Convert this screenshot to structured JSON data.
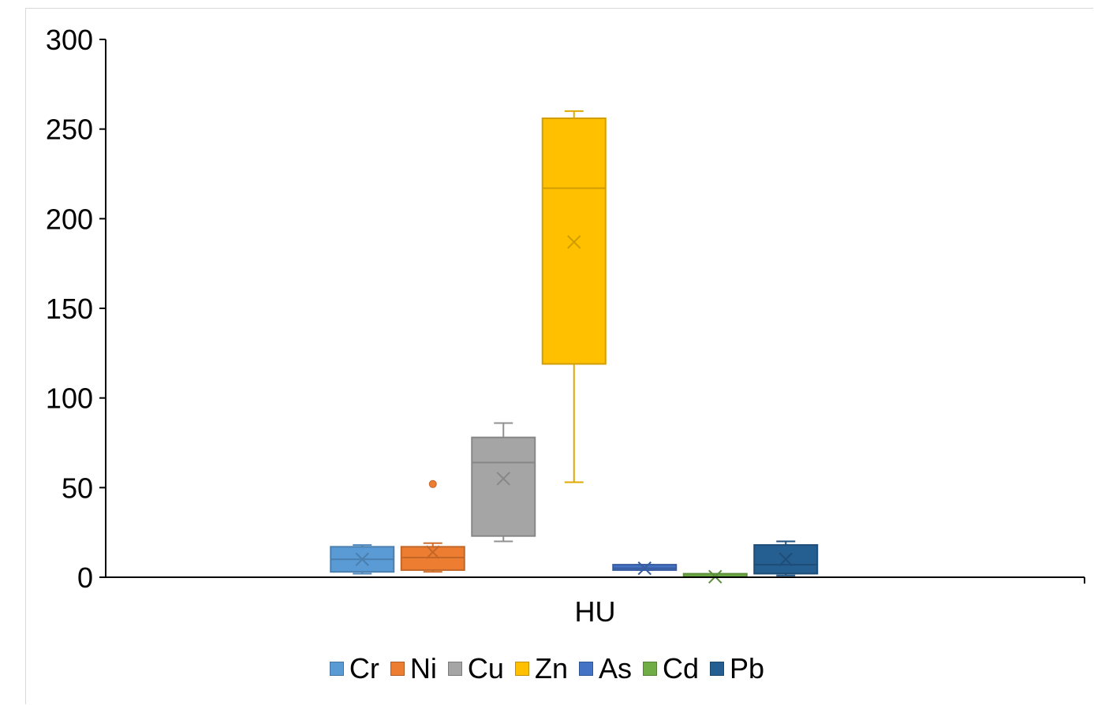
{
  "chart_data": {
    "type": "box",
    "title": "",
    "xlabel": "",
    "ylabel": "",
    "ylim": [
      0,
      300
    ],
    "yticks": [
      0,
      50,
      100,
      150,
      200,
      250,
      300
    ],
    "categories": [
      "HU"
    ],
    "grid": false,
    "legend_position": "bottom",
    "series": [
      {
        "name": "Cr",
        "color": "#5B9BD5",
        "min": 2,
        "q1": 3,
        "median": 10,
        "q3": 17,
        "max": 18,
        "mean": 10,
        "outliers": []
      },
      {
        "name": "Ni",
        "color": "#ED7D31",
        "min": 3,
        "q1": 4,
        "median": 11,
        "q3": 17,
        "max": 19,
        "mean": 14,
        "outliers": [
          52
        ]
      },
      {
        "name": "Cu",
        "color": "#A5A5A5",
        "min": 20,
        "q1": 23,
        "median": 64,
        "q3": 78,
        "max": 86,
        "mean": 55,
        "outliers": []
      },
      {
        "name": "Zn",
        "color": "#FFC000",
        "min": 53,
        "q1": 119,
        "median": 217,
        "q3": 256,
        "max": 260,
        "mean": 187,
        "outliers": []
      },
      {
        "name": "As",
        "color": "#4472C4",
        "min": 4,
        "q1": 4,
        "median": 5,
        "q3": 7,
        "max": 7,
        "mean": 5,
        "outliers": []
      },
      {
        "name": "Cd",
        "color": "#70AD47",
        "min": 0.1,
        "q1": 0.2,
        "median": 0.3,
        "q3": 0.4,
        "max": 0.5,
        "mean": 0.3,
        "outliers": []
      },
      {
        "name": "Pb",
        "color": "#255E91",
        "min": 1,
        "q1": 2,
        "median": 7,
        "q3": 18,
        "max": 20,
        "mean": 10,
        "outliers": []
      }
    ]
  }
}
